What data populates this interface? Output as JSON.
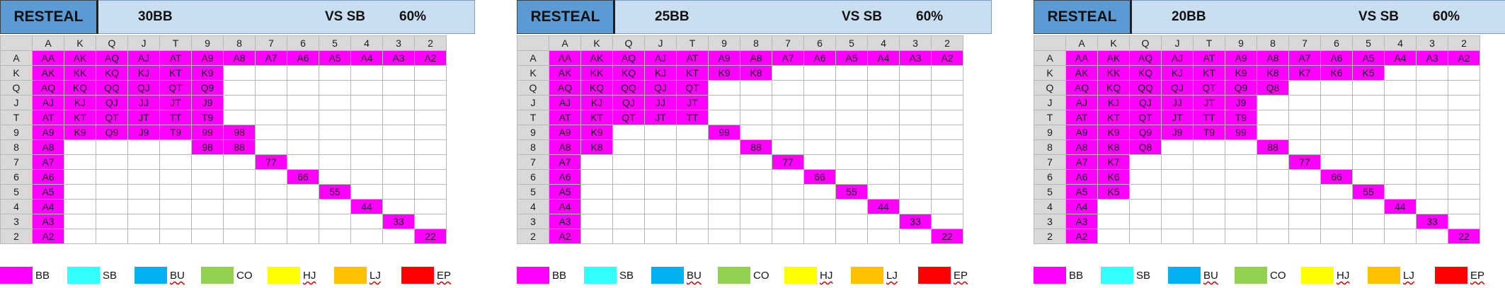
{
  "ranks": [
    "A",
    "K",
    "Q",
    "J",
    "T",
    "9",
    "8",
    "7",
    "6",
    "5",
    "4",
    "3",
    "2"
  ],
  "colors": {
    "highlight": "#ff00ff",
    "header_dark": "#5b9bd5",
    "header_light": "#c9def1",
    "grid_header": "#d9d9d9"
  },
  "panels": [
    {
      "title": "RESTEAL",
      "stack": "30BB",
      "vs": "VS SB",
      "percent": "60%",
      "hands": [
        "AA",
        "AK",
        "AQ",
        "AJ",
        "AT",
        "A9",
        "A8",
        "A7",
        "A6",
        "A5",
        "A4",
        "A3",
        "A2",
        "KK",
        "KQ",
        "KJ",
        "KT",
        "K9",
        "QQ",
        "QJ",
        "QT",
        "Q9",
        "JJ",
        "JT",
        "J9",
        "TT",
        "T9",
        "99",
        "98",
        "88",
        "77",
        "66",
        "55",
        "44",
        "33",
        "22"
      ]
    },
    {
      "title": "RESTEAL",
      "stack": "25BB",
      "vs": "VS SB",
      "percent": "60%",
      "hands": [
        "AA",
        "AK",
        "AQ",
        "AJ",
        "AT",
        "A9",
        "A8",
        "A7",
        "A6",
        "A5",
        "A4",
        "A3",
        "A2",
        "KK",
        "KQ",
        "KJ",
        "KT",
        "K9",
        "K8",
        "QQ",
        "QJ",
        "QT",
        "JJ",
        "JT",
        "TT",
        "99",
        "88",
        "77",
        "66",
        "55",
        "44",
        "33",
        "22"
      ]
    },
    {
      "title": "RESTEAL",
      "stack": "20BB",
      "vs": "VS SB",
      "percent": "60%",
      "hands": [
        "AA",
        "AK",
        "AQ",
        "AJ",
        "AT",
        "A9",
        "A8",
        "A7",
        "A6",
        "A5",
        "A4",
        "A3",
        "A2",
        "KK",
        "KQ",
        "KJ",
        "KT",
        "K9",
        "K8",
        "K7",
        "K6",
        "K5",
        "QQ",
        "QJ",
        "QT",
        "Q9",
        "Q8",
        "JJ",
        "JT",
        "J9",
        "TT",
        "T9",
        "99",
        "88",
        "77",
        "66",
        "55",
        "44",
        "33",
        "22"
      ]
    }
  ],
  "legend": [
    {
      "label": "BB",
      "color": "#ff00ff",
      "squiggle": false
    },
    {
      "label": "SB",
      "color": "#33ffff",
      "squiggle": false
    },
    {
      "label": "BU",
      "color": "#00b0f0",
      "squiggle": true
    },
    {
      "label": "CO",
      "color": "#92d050",
      "squiggle": false
    },
    {
      "label": "HJ",
      "color": "#ffff00",
      "squiggle": true
    },
    {
      "label": "LJ",
      "color": "#ffc000",
      "squiggle": true
    },
    {
      "label": "EP",
      "color": "#ff0000",
      "squiggle": true
    }
  ]
}
